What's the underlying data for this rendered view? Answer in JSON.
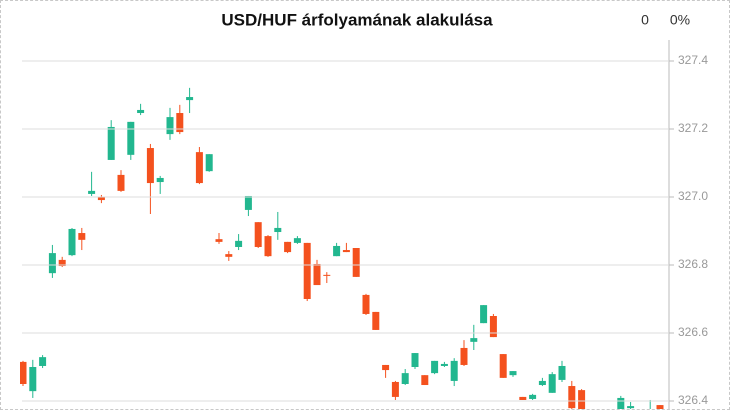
{
  "chart_data": {
    "type": "candlestick",
    "title": "USD/HUF árfolyamának alakulása",
    "annotations": [
      "0",
      "0%"
    ],
    "up_color": "#22b78f",
    "down_color": "#f4511e",
    "grid": true,
    "ylim": [
      326.37,
      327.46
    ],
    "yticks": [
      {
        "value": 326.4,
        "label": "326.4"
      },
      {
        "value": 326.6,
        "label": "326.6"
      },
      {
        "value": 326.8,
        "label": "326.8"
      },
      {
        "value": 327.0,
        "label": "327.0"
      },
      {
        "value": 327.2,
        "label": "327.2"
      },
      {
        "value": 327.4,
        "label": "327.4"
      }
    ],
    "open": [
      326.515,
      326.429,
      326.503,
      326.776,
      326.815,
      326.829,
      326.894,
      327.009,
      327.0,
      327.109,
      327.065,
      327.124,
      327.247,
      327.144,
      327.044,
      327.185,
      327.247,
      327.285,
      327.132,
      327.076,
      326.876,
      326.832,
      326.853,
      326.962,
      326.926,
      326.885,
      326.897,
      326.868,
      326.865,
      326.865,
      326.803,
      326.771,
      326.826,
      326.844,
      326.85,
      326.712,
      326.662,
      326.506,
      326.456,
      326.45,
      326.5,
      326.476,
      326.482,
      326.503,
      326.459,
      326.556,
      326.574,
      326.629,
      326.65,
      326.538,
      326.476,
      326.412,
      326.406,
      326.447,
      326.424,
      326.462,
      326.444,
      326.432,
      null,
      null,
      null,
      326.374,
      326.379,
      null,
      326.374,
      326.388
    ],
    "high": [
      326.518,
      326.521,
      326.535,
      326.859,
      326.824,
      326.909,
      326.909,
      327.074,
      327.006,
      327.226,
      327.079,
      327.221,
      327.274,
      327.156,
      327.062,
      327.262,
      327.271,
      327.321,
      327.147,
      327.126,
      326.894,
      326.841,
      326.891,
      327.003,
      326.926,
      326.888,
      326.956,
      326.868,
      326.885,
      326.865,
      326.815,
      326.779,
      326.865,
      326.865,
      326.85,
      326.715,
      326.662,
      326.506,
      326.459,
      326.494,
      326.541,
      326.476,
      326.518,
      326.515,
      326.526,
      326.579,
      326.624,
      326.682,
      326.656,
      326.538,
      326.488,
      326.412,
      326.421,
      326.468,
      326.485,
      326.518,
      326.459,
      326.435,
      null,
      null,
      null,
      326.415,
      326.397,
      null,
      326.403,
      326.388
    ],
    "low": [
      326.444,
      326.409,
      326.497,
      326.762,
      326.794,
      326.826,
      326.844,
      327.003,
      326.982,
      327.109,
      327.015,
      327.109,
      327.241,
      326.95,
      327.009,
      327.168,
      327.185,
      327.247,
      327.038,
      327.074,
      326.862,
      326.812,
      326.844,
      326.944,
      326.85,
      326.824,
      326.874,
      326.835,
      326.862,
      326.694,
      326.741,
      326.747,
      326.826,
      326.838,
      326.765,
      326.653,
      326.609,
      326.468,
      326.403,
      326.447,
      326.494,
      326.447,
      326.479,
      326.5,
      326.444,
      326.503,
      326.55,
      326.629,
      326.588,
      326.468,
      326.471,
      326.403,
      326.403,
      326.444,
      326.424,
      326.456,
      326.374,
      326.368,
      null,
      null,
      null,
      326.368,
      326.376,
      null,
      326.368,
      326.368
    ],
    "close": [
      326.45,
      326.5,
      326.529,
      326.835,
      326.797,
      326.906,
      326.874,
      327.018,
      326.991,
      327.206,
      327.018,
      327.221,
      327.256,
      327.041,
      327.056,
      327.235,
      327.191,
      327.294,
      327.041,
      327.126,
      326.868,
      326.824,
      326.871,
      327.003,
      326.853,
      326.826,
      326.909,
      326.838,
      326.879,
      326.7,
      326.741,
      326.768,
      326.856,
      326.838,
      326.765,
      326.656,
      326.609,
      326.491,
      326.412,
      326.482,
      326.541,
      326.447,
      326.518,
      326.509,
      326.518,
      326.506,
      326.585,
      326.682,
      326.588,
      326.468,
      326.488,
      326.403,
      326.418,
      326.459,
      326.479,
      326.503,
      326.379,
      326.374,
      null,
      null,
      null,
      326.409,
      326.385,
      null,
      326.376,
      326.368
    ]
  }
}
